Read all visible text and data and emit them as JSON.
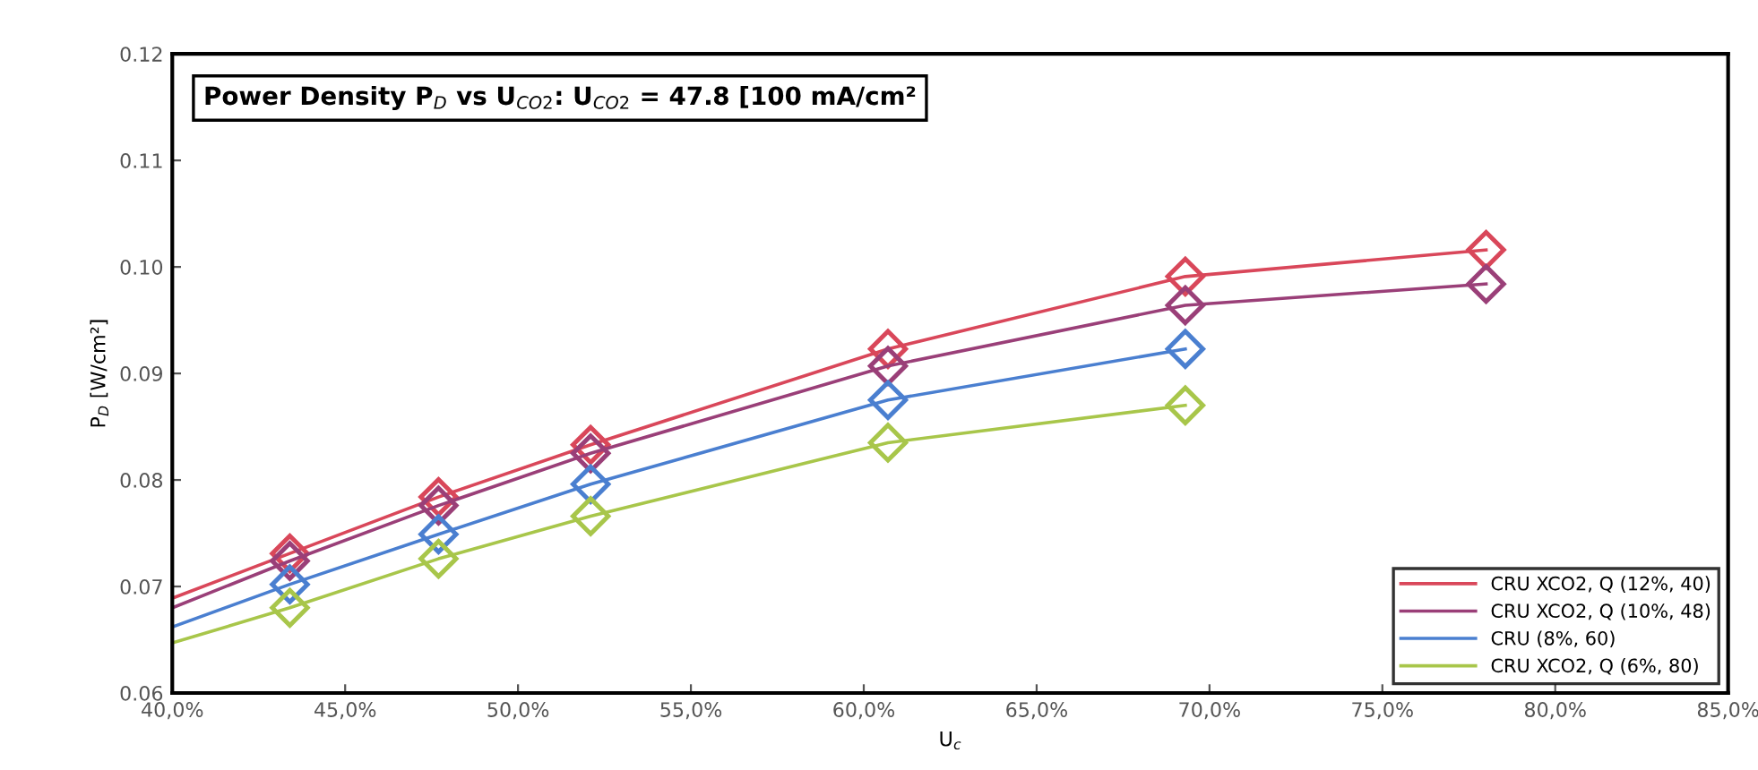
{
  "chart_data": {
    "type": "line",
    "title": "Power Density P$_{D}$ vs U$_{CO2}$: U$_{CO2}$ = 47.8 [100 mA/cm²",
    "xlabel": "U$_{c}$",
    "ylabel": "P$_{D}$ [W/cm²]",
    "x": [
      40.0,
      43.4,
      47.7,
      52.1,
      60.7,
      69.3,
      78.0
    ],
    "series": [
      {
        "name": "CRU XCO2, Q (12%, 40)",
        "color": "#d9475a",
        "values": [
          0.0689,
          0.0731,
          0.0784,
          0.0833,
          0.0923,
          0.0991,
          0.1016
        ]
      },
      {
        "name": "CRU XCO2, Q (10%, 48)",
        "color": "#9a3f78",
        "values": [
          0.068,
          0.0724,
          0.0776,
          0.0825,
          0.0907,
          0.0964,
          0.0984
        ]
      },
      {
        "name": "CRU (8%, 60)",
        "color": "#4a7fd0",
        "values": [
          0.0662,
          0.0702,
          0.0749,
          0.0796,
          0.0875,
          0.0923,
          null
        ]
      },
      {
        "name": "CRU XCO2, Q (6%, 80)",
        "color": "#a8c64a",
        "values": [
          0.0647,
          0.068,
          0.0726,
          0.0766,
          0.0835,
          0.087,
          null
        ]
      }
    ],
    "xlim": [
      40,
      85
    ],
    "xticks": [
      {
        "value": 40,
        "label": "40,0%"
      },
      {
        "value": 45,
        "label": "45,0%"
      },
      {
        "value": 50,
        "label": "50,0%"
      },
      {
        "value": 55,
        "label": "55,0%"
      },
      {
        "value": 60,
        "label": "60,0%"
      },
      {
        "value": 65,
        "label": "65,0%"
      },
      {
        "value": 70,
        "label": "70,0%"
      },
      {
        "value": 75,
        "label": "75,0%"
      },
      {
        "value": 80,
        "label": "80,0%"
      },
      {
        "value": 85,
        "label": "85,0%"
      }
    ],
    "ylim": [
      0.06,
      0.12
    ],
    "yticks": [
      {
        "value": 0.06,
        "label": "0.06"
      },
      {
        "value": 0.07,
        "label": "0.07"
      },
      {
        "value": 0.08,
        "label": "0.08"
      },
      {
        "value": 0.09,
        "label": "0.09"
      },
      {
        "value": 0.1,
        "label": "0.10"
      },
      {
        "value": 0.11,
        "label": "0.11"
      },
      {
        "value": 0.12,
        "label": "0.12"
      }
    ],
    "marker": "diamond",
    "line_style": "solid",
    "grid": false,
    "legend": "bottom right"
  }
}
